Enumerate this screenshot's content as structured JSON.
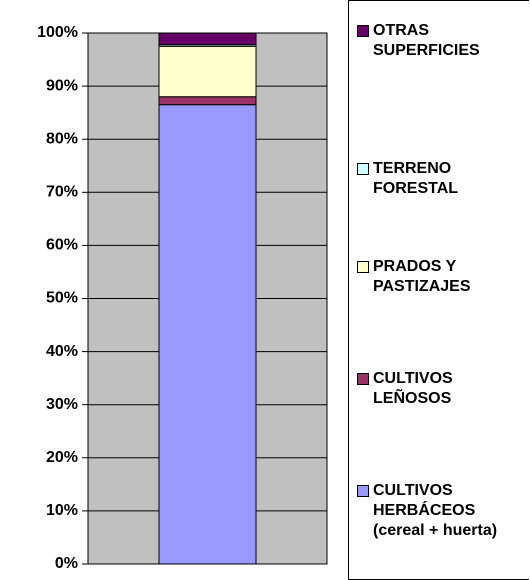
{
  "chart_data": {
    "type": "bar",
    "stacked": true,
    "categories": [
      null
    ],
    "series": [
      {
        "name": "CULTIVOS HERBÁCEOS (cereal + huerta)",
        "color": "#9999ff",
        "values": [
          86.5
        ]
      },
      {
        "name": "CULTIVOS LEÑOSOS",
        "color": "#993366",
        "values": [
          1.5
        ]
      },
      {
        "name": "PRADOS Y PASTIZAJES",
        "color": "#ffffcc",
        "values": [
          9.5
        ]
      },
      {
        "name": "TERRENO FORESTAL",
        "color": "#ccffff",
        "values": [
          0.3
        ]
      },
      {
        "name": "OTRAS SUPERFICIES",
        "color": "#660066",
        "values": [
          2.2
        ]
      }
    ],
    "ylim": [
      0,
      100
    ],
    "yticks": [
      {
        "value": 0,
        "label": "0%"
      },
      {
        "value": 10,
        "label": "10%"
      },
      {
        "value": 20,
        "label": "20%"
      },
      {
        "value": 30,
        "label": "30%"
      },
      {
        "value": 40,
        "label": "40%"
      },
      {
        "value": 50,
        "label": "50%"
      },
      {
        "value": 60,
        "label": "60%"
      },
      {
        "value": 70,
        "label": "70%"
      },
      {
        "value": 80,
        "label": "80%"
      },
      {
        "value": 90,
        "label": "90%"
      },
      {
        "value": 100,
        "label": "100%"
      }
    ],
    "grid": true
  }
}
